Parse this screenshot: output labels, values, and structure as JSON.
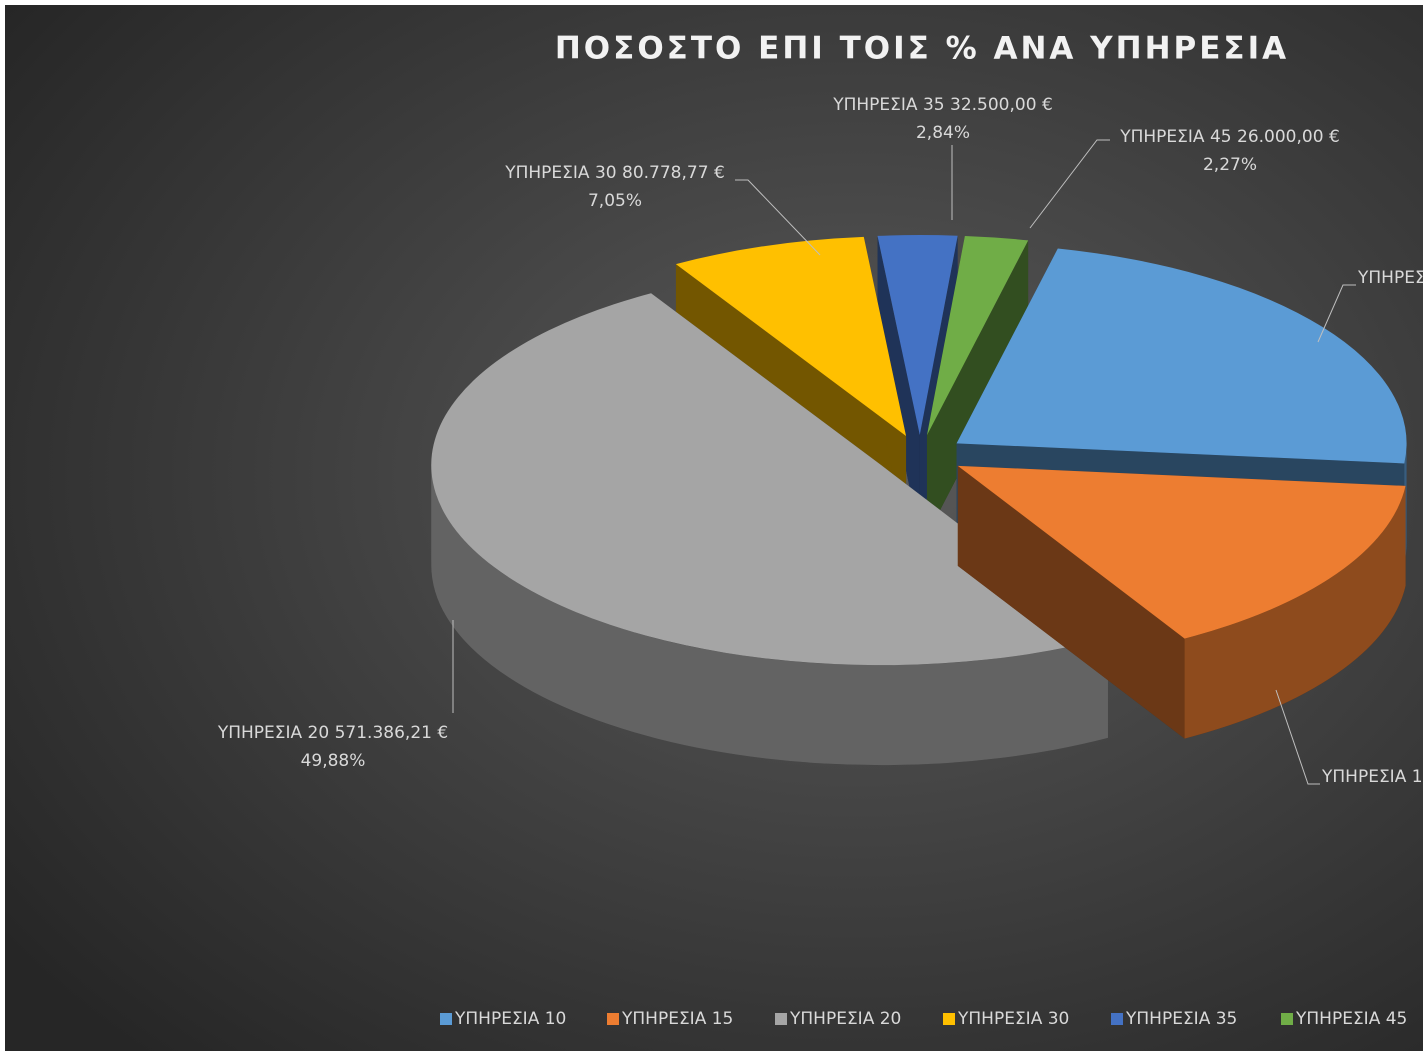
{
  "chart_data": {
    "type": "pie3d",
    "title": "ΠΟΣΟΣΤΟ ΕΠΙ ΤΟΙΣ % ΑΝΑ ΥΠΗΡΕΣΙΑ",
    "categories": [
      "ΥΠΗΡΕΣΙΑ 10",
      "ΥΠΗΡΕΣΙΑ 15",
      "ΥΠΗΡΕΣΙΑ 20",
      "ΥΠΗΡΕΣΙΑ 30",
      "ΥΠΗΡΕΣΙΑ 35",
      "ΥΠΗΡΕΣΙΑ 45"
    ],
    "values": [
      23,
      15,
      49.88,
      7.05,
      2.84,
      2.27
    ],
    "value_labels": [
      null,
      null,
      "49,88%",
      "7,05%",
      "2,84%",
      "2,27%"
    ],
    "amounts": [
      null,
      null,
      571386.21,
      80778.77,
      32500,
      26000
    ],
    "amount_labels": [
      null,
      null,
      "571.386,21 €",
      "80.778,77 €",
      "32.500,00 €",
      "26.000,00 €"
    ],
    "colors": [
      "#5b9bd5",
      "#ed7d31",
      "#a5a5a5",
      "#ffc000",
      "#4472c4",
      "#70ad47"
    ],
    "legend": "bottom"
  }
}
